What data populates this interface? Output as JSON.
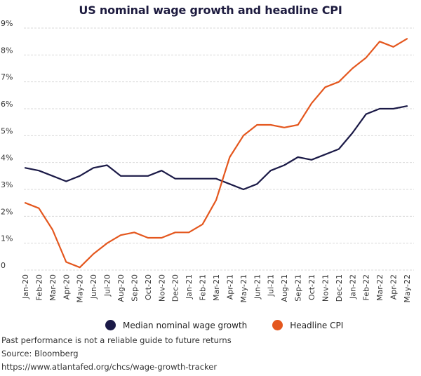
{
  "chart_data": {
    "type": "line",
    "title": "US nominal wage growth and headline CPI",
    "xlabel": "",
    "ylabel": "",
    "ylim": [
      0,
      9
    ],
    "y_ticks": [
      "0",
      "1%",
      "2%",
      "3%",
      "4%",
      "5%",
      "6%",
      "7%",
      "8%",
      "9%"
    ],
    "grid": true,
    "legend_position": "bottom",
    "categories": [
      "Jan-20",
      "Feb-20",
      "Mar-20",
      "Apr-20",
      "May-20",
      "Jun-20",
      "Jul-20",
      "Aug-20",
      "Sep-20",
      "Oct-20",
      "Nov-20",
      "Dec-20",
      "Jan-21",
      "Feb-21",
      "Mar-21",
      "Apr-21",
      "May-21",
      "Jun-21",
      "Jul-21",
      "Aug-21",
      "Sep-21",
      "Oct-21",
      "Nov-21",
      "Dec-21",
      "Jan-22",
      "Feb-22",
      "Mar-22",
      "Apr-22",
      "May-22"
    ],
    "series": [
      {
        "name": "Median nominal wage growth",
        "color": "#1b1a47",
        "values": [
          3.8,
          3.7,
          3.5,
          3.3,
          3.5,
          3.8,
          3.9,
          3.5,
          3.5,
          3.5,
          3.7,
          3.4,
          3.4,
          3.4,
          3.4,
          3.2,
          3.0,
          3.2,
          3.7,
          3.9,
          4.2,
          4.1,
          4.3,
          4.5,
          5.1,
          5.8,
          6.0,
          6.0,
          6.1
        ]
      },
      {
        "name": "Headline CPI",
        "color": "#e4571e",
        "values": [
          2.5,
          2.3,
          1.5,
          0.3,
          0.1,
          0.6,
          1.0,
          1.3,
          1.4,
          1.2,
          1.2,
          1.4,
          1.4,
          1.7,
          2.6,
          4.2,
          5.0,
          5.4,
          5.4,
          5.3,
          5.4,
          6.2,
          6.8,
          7.0,
          7.5,
          7.9,
          8.5,
          8.3,
          8.6
        ]
      }
    ]
  },
  "footer": {
    "disclaimer": "Past performance is not a reliable guide to future returns",
    "source": "Source: Bloomberg",
    "url": "https://www.atlantafed.org/chcs/wage-growth-tracker"
  }
}
